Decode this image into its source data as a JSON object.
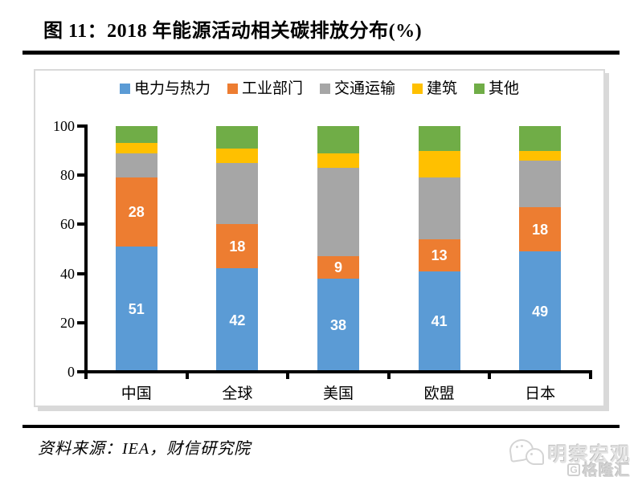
{
  "page": {
    "title": "图 11：2018 年能源活动相关碳排放分布(%)",
    "source_note": "资料来源：IEA，财信研究院",
    "watermark": {
      "brand": "明察宏观",
      "partner_logo": "格隆汇",
      "partner_letter": "G"
    }
  },
  "chart_data": {
    "type": "bar",
    "stacked": true,
    "title": "2018 年能源活动相关碳排放分布(%)",
    "categories": [
      "中国",
      "全球",
      "美国",
      "欧盟",
      "日本"
    ],
    "series": [
      {
        "name": "电力与热力",
        "color": "#5B9BD5",
        "values": [
          51,
          42,
          38,
          41,
          49
        ],
        "show_labels": true
      },
      {
        "name": "工业部门",
        "color": "#ED7D31",
        "values": [
          28,
          18,
          9,
          13,
          18
        ],
        "show_labels": true
      },
      {
        "name": "交通运输",
        "color": "#A6A6A6",
        "values": [
          10,
          25,
          36,
          25,
          19
        ],
        "show_labels": false
      },
      {
        "name": "建筑",
        "color": "#FFC000",
        "values": [
          4,
          6,
          6,
          11,
          4
        ],
        "show_labels": false
      },
      {
        "name": "其他",
        "color": "#70AD47",
        "values": [
          7,
          9,
          11,
          10,
          10
        ],
        "show_labels": false
      }
    ],
    "ylim": [
      0,
      100
    ],
    "yticks": [
      0,
      20,
      40,
      60,
      80,
      100
    ],
    "legend_position": "top",
    "grid": false,
    "value_label_color": "#ffffff",
    "axis_color": "#000000"
  }
}
